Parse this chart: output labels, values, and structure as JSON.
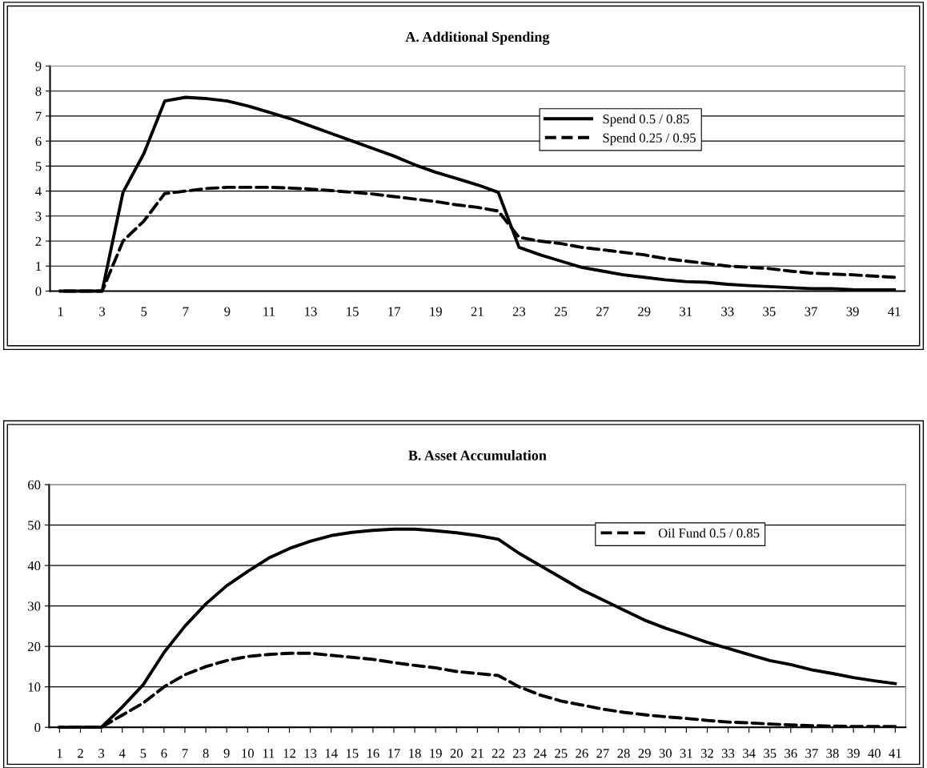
{
  "chart_data": [
    {
      "type": "line",
      "title": "A. Additional Spending",
      "categories": [
        "1",
        null,
        "3",
        null,
        "5",
        null,
        "7",
        null,
        "9",
        null,
        "11",
        null,
        "13",
        null,
        "15",
        null,
        "17",
        null,
        "19",
        null,
        "21",
        null,
        "23",
        null,
        "25",
        null,
        "27",
        null,
        "29",
        null,
        "31",
        null,
        "33",
        null,
        "35",
        null,
        "37",
        null,
        "39",
        null,
        "41"
      ],
      "ylim": [
        0,
        9
      ],
      "yticks": [
        0,
        1,
        2,
        3,
        4,
        5,
        6,
        7,
        8,
        9
      ],
      "grid": "y",
      "legend": "top right",
      "marker": "none",
      "series": [
        {
          "name": "Spend 0.5 / 0.85",
          "color": "#000000",
          "line_style": "solid",
          "values": [
            0,
            0,
            0,
            3.95,
            5.5,
            7.6,
            7.75,
            7.7,
            7.6,
            7.4,
            7.15,
            6.9,
            6.6,
            6.3,
            6.0,
            5.7,
            5.4,
            5.05,
            4.75,
            4.5,
            4.25,
            3.95,
            1.75,
            1.45,
            1.2,
            0.95,
            0.8,
            0.65,
            0.55,
            0.45,
            0.38,
            0.35,
            0.27,
            0.22,
            0.18,
            0.14,
            0.1,
            0.1,
            0.06,
            0.05,
            0.05
          ]
        },
        {
          "name": "Spend 0.25 / 0.95",
          "color": "#000000",
          "line_style": "dashed",
          "values": [
            0,
            0,
            0,
            2.0,
            2.8,
            3.9,
            4.0,
            4.1,
            4.15,
            4.15,
            4.15,
            4.12,
            4.08,
            4.02,
            3.95,
            3.88,
            3.78,
            3.68,
            3.58,
            3.45,
            3.35,
            3.2,
            2.15,
            2.0,
            1.9,
            1.75,
            1.65,
            1.55,
            1.45,
            1.3,
            1.2,
            1.1,
            1.0,
            0.95,
            0.9,
            0.8,
            0.72,
            0.68,
            0.65,
            0.6,
            0.55
          ]
        }
      ]
    },
    {
      "type": "line",
      "title": "B. Asset Accumulation",
      "categories": [
        "1",
        "2",
        "3",
        "4",
        "5",
        "6",
        "7",
        "8",
        "9",
        "10",
        "11",
        "12",
        "13",
        "14",
        "15",
        "16",
        "17",
        "18",
        "19",
        "20",
        "21",
        "22",
        "23",
        "24",
        "25",
        "26",
        "27",
        "28",
        "29",
        "30",
        "31",
        "32",
        "33",
        "34",
        "35",
        "36",
        "37",
        "38",
        "39",
        "40",
        "41"
      ],
      "ylim": [
        0,
        60
      ],
      "yticks": [
        0,
        10,
        20,
        30,
        40,
        50,
        60
      ],
      "grid": "y",
      "legend": "top",
      "marker": "none",
      "series": [
        {
          "color": "#000000",
          "line_style": "solid",
          "values": [
            0,
            0,
            0,
            5,
            10.5,
            18.5,
            25,
            30.5,
            35,
            38.5,
            41.8,
            44.2,
            46,
            47.4,
            48.2,
            48.7,
            49,
            49,
            48.6,
            48.1,
            47.4,
            46.5,
            43,
            40,
            37,
            34,
            31.5,
            29,
            26.5,
            24.5,
            22.8,
            21,
            19.5,
            18,
            16.5,
            15.5,
            14.2,
            13.3,
            12.3,
            11.5,
            10.8
          ]
        },
        {
          "name": "Oil Fund 0.5 / 0.85",
          "color": "#000000",
          "line_style": "dashed",
          "values": [
            0,
            0,
            0,
            3,
            6,
            10,
            13,
            15,
            16.5,
            17.5,
            18,
            18.3,
            18.3,
            17.8,
            17.3,
            16.8,
            16,
            15.3,
            14.7,
            13.8,
            13.3,
            12.8,
            10,
            8,
            6.5,
            5.5,
            4.5,
            3.7,
            3.1,
            2.6,
            2.2,
            1.7,
            1.3,
            1.1,
            0.8,
            0.6,
            0.4,
            0.3,
            0.2,
            0.2,
            0.2
          ]
        }
      ]
    }
  ]
}
